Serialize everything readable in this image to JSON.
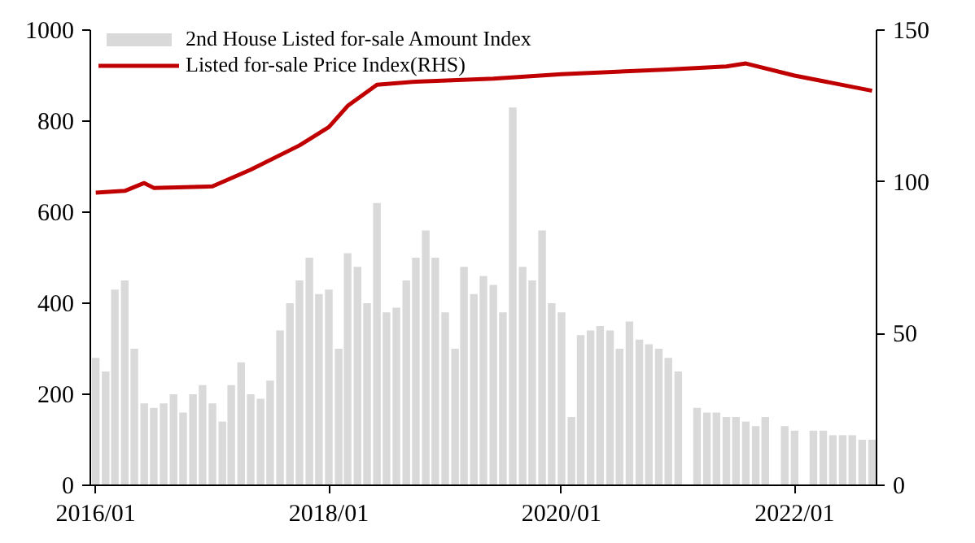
{
  "chart_data": {
    "type": "bar",
    "xlim": [
      "2015-12-15",
      "2022-09-15"
    ],
    "xticks": [
      {
        "value": "2016-01",
        "label": "2016/01"
      },
      {
        "value": "2018-01",
        "label": "2018/01"
      },
      {
        "value": "2020-01",
        "label": "2020/01"
      },
      {
        "value": "2022-01",
        "label": "2022/01"
      }
    ],
    "ylim": [
      0,
      1000
    ],
    "yticks": [
      0,
      200,
      400,
      600,
      800,
      1000
    ],
    "y2lim": [
      0,
      150
    ],
    "y2ticks": [
      0,
      50,
      100,
      150
    ],
    "x": [
      "2016-01",
      "2016-02",
      "2016-03",
      "2016-04",
      "2016-05",
      "2016-06",
      "2016-07",
      "2016-08",
      "2016-09",
      "2016-10",
      "2016-11",
      "2016-12",
      "2017-01",
      "2017-02",
      "2017-03",
      "2017-04",
      "2017-05",
      "2017-06",
      "2017-07",
      "2017-08",
      "2017-09",
      "2017-10",
      "2017-11",
      "2017-12",
      "2018-01",
      "2018-02",
      "2018-03",
      "2018-04",
      "2018-05",
      "2018-06",
      "2018-07",
      "2018-08",
      "2018-09",
      "2018-10",
      "2018-11",
      "2018-12",
      "2019-01",
      "2019-02",
      "2019-03",
      "2019-04",
      "2019-05",
      "2019-06",
      "2019-07",
      "2019-08",
      "2019-09",
      "2019-10",
      "2019-11",
      "2019-12",
      "2020-01",
      "2020-02",
      "2020-03",
      "2020-04",
      "2020-05",
      "2020-06",
      "2020-07",
      "2020-08",
      "2020-09",
      "2020-10",
      "2020-11",
      "2020-12",
      "2021-01",
      "2021-02",
      "2021-03",
      "2021-04",
      "2021-05",
      "2021-06",
      "2021-07",
      "2021-08",
      "2021-09",
      "2021-10",
      "2021-11",
      "2021-12",
      "2022-01",
      "2022-02",
      "2022-03",
      "2022-04",
      "2022-05",
      "2022-06",
      "2022-07",
      "2022-08",
      "2022-09"
    ],
    "series": [
      {
        "name": "2nd House Listed for-sale Amount Index",
        "color": "#d9d9d9",
        "values": [
          280,
          250,
          430,
          450,
          300,
          180,
          170,
          180,
          200,
          160,
          200,
          220,
          180,
          140,
          220,
          270,
          200,
          190,
          230,
          340,
          400,
          450,
          500,
          420,
          430,
          300,
          510,
          480,
          400,
          620,
          380,
          390,
          450,
          500,
          560,
          500,
          380,
          300,
          480,
          420,
          460,
          440,
          380,
          830,
          480,
          450,
          560,
          400,
          380,
          150,
          330,
          340,
          350,
          340,
          300,
          360,
          320,
          310,
          300,
          280,
          250,
          0,
          170,
          160,
          160,
          150,
          150,
          140,
          130,
          150,
          0,
          130,
          120,
          0,
          120,
          120,
          110,
          110,
          110,
          100,
          100
        ]
      },
      {
        "name": "Listed for-sale Price Index(RHS)",
        "type": "line",
        "axis": "y2",
        "color": "#c00000",
        "x": [
          "2016-01",
          "2016-04",
          "2016-06",
          "2016-07",
          "2017-01",
          "2017-05",
          "2017-10",
          "2018-01",
          "2018-03",
          "2018-06",
          "2018-10",
          "2019-06",
          "2020-01",
          "2020-12",
          "2021-06",
          "2021-08",
          "2022-01",
          "2022-09"
        ],
        "values": [
          96.4,
          97,
          99.6,
          98,
          98.5,
          104,
          112,
          118,
          125,
          132,
          133,
          134,
          135.5,
          137,
          138,
          139,
          135,
          130
        ]
      }
    ],
    "grid": false,
    "legend": "top left"
  }
}
